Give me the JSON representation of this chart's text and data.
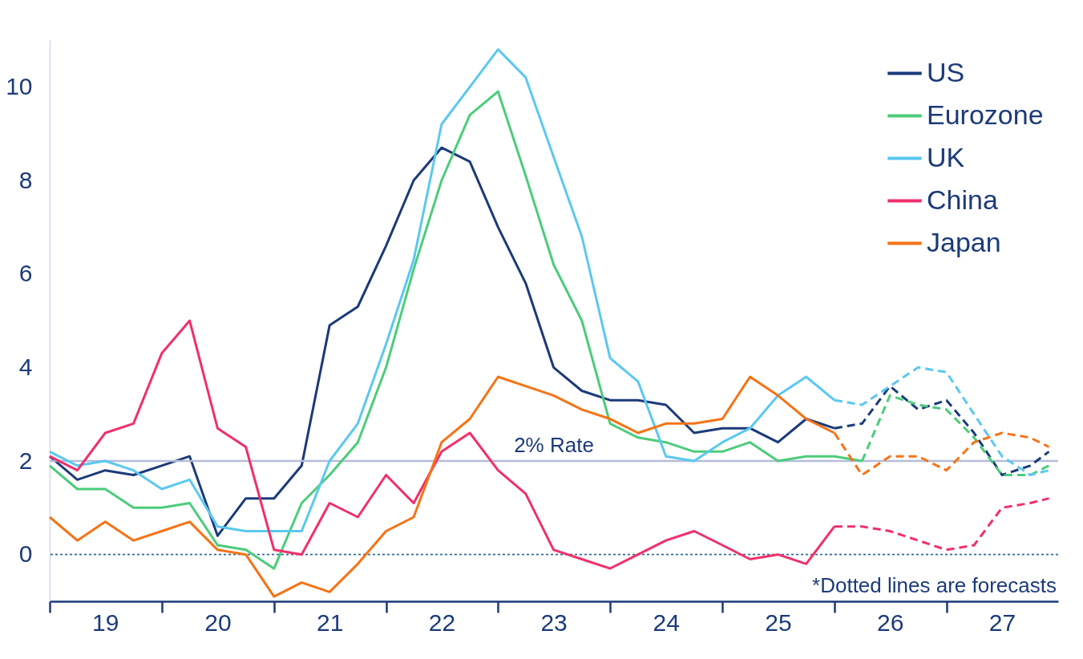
{
  "chart_data": {
    "type": "line",
    "series": [
      {
        "name": "US",
        "color": "#1b3a7a",
        "x": [
          "2019-01",
          "2019-04",
          "2019-07",
          "2019-10",
          "2020-01",
          "2020-04",
          "2020-07",
          "2020-10",
          "2021-01",
          "2021-04",
          "2021-07",
          "2021-10",
          "2022-01",
          "2022-04",
          "2022-07",
          "2022-10",
          "2023-01",
          "2023-04",
          "2023-07",
          "2023-10",
          "2024-01",
          "2024-04",
          "2024-07",
          "2024-10",
          "2025-01",
          "2025-04",
          "2025-07",
          "2025-10",
          "2026-01"
        ],
        "values": [
          2.1,
          1.6,
          1.8,
          1.7,
          1.9,
          2.1,
          0.4,
          1.2,
          1.2,
          1.9,
          4.9,
          5.3,
          6.6,
          8.0,
          8.7,
          8.4,
          7.0,
          5.8,
          4.0,
          3.5,
          3.3,
          3.3,
          3.2,
          2.6,
          2.7,
          2.7,
          2.4,
          2.9,
          2.7
        ]
      },
      {
        "name": "Eurozone",
        "color": "#4ccc7a",
        "x": [
          "2019-01",
          "2019-04",
          "2019-07",
          "2019-10",
          "2020-01",
          "2020-04",
          "2020-07",
          "2020-10",
          "2021-01",
          "2021-04",
          "2021-07",
          "2021-10",
          "2022-01",
          "2022-04",
          "2022-07",
          "2022-10",
          "2023-01",
          "2023-04",
          "2023-07",
          "2023-10",
          "2024-01",
          "2024-04",
          "2024-07",
          "2024-10",
          "2025-01",
          "2025-04",
          "2025-07",
          "2025-10",
          "2026-01",
          "2026-04"
        ],
        "values": [
          1.9,
          1.4,
          1.4,
          1.0,
          1.0,
          1.1,
          0.2,
          0.1,
          -0.3,
          1.1,
          1.7,
          2.4,
          4.0,
          6.1,
          8.0,
          9.4,
          9.9,
          8.1,
          6.2,
          5.0,
          2.8,
          2.5,
          2.4,
          2.2,
          2.2,
          2.4,
          2.0,
          2.1,
          2.1,
          2.0
        ]
      },
      {
        "name": "UK",
        "color": "#5bc8f0",
        "x": [
          "2019-01",
          "2019-04",
          "2019-07",
          "2019-10",
          "2020-01",
          "2020-04",
          "2020-07",
          "2020-10",
          "2021-01",
          "2021-04",
          "2021-07",
          "2021-10",
          "2022-01",
          "2022-04",
          "2022-07",
          "2022-10",
          "2023-01",
          "2023-04",
          "2023-07",
          "2023-10",
          "2024-01",
          "2024-04",
          "2024-07",
          "2024-10",
          "2025-01",
          "2025-04",
          "2025-07",
          "2025-10",
          "2026-01"
        ],
        "values": [
          2.2,
          1.9,
          2.0,
          1.8,
          1.4,
          1.6,
          0.6,
          0.5,
          0.5,
          0.5,
          2.0,
          2.8,
          4.5,
          6.3,
          9.2,
          10.0,
          10.8,
          10.2,
          8.5,
          6.8,
          4.2,
          3.7,
          2.1,
          2.0,
          2.4,
          2.7,
          3.4,
          3.8,
          3.3
        ]
      },
      {
        "name": "China",
        "color": "#f0306a",
        "x": [
          "2019-01",
          "2019-04",
          "2019-07",
          "2019-10",
          "2020-01",
          "2020-04",
          "2020-07",
          "2020-10",
          "2021-01",
          "2021-04",
          "2021-07",
          "2021-10",
          "2022-01",
          "2022-04",
          "2022-07",
          "2022-10",
          "2023-01",
          "2023-04",
          "2023-07",
          "2023-10",
          "2024-01",
          "2024-04",
          "2024-07",
          "2024-10",
          "2025-01",
          "2025-04",
          "2025-07",
          "2025-10",
          "2026-01"
        ],
        "values": [
          2.1,
          1.8,
          2.6,
          2.8,
          4.3,
          5.0,
          2.7,
          2.3,
          0.1,
          0.0,
          1.1,
          0.8,
          1.7,
          1.1,
          2.2,
          2.6,
          1.8,
          1.3,
          0.1,
          -0.1,
          -0.3,
          0.0,
          0.3,
          0.5,
          0.2,
          -0.1,
          0.0,
          -0.2,
          0.6
        ]
      },
      {
        "name": "Japan",
        "color": "#f57315",
        "x": [
          "2019-01",
          "2019-04",
          "2019-07",
          "2019-10",
          "2020-01",
          "2020-04",
          "2020-07",
          "2020-10",
          "2021-01",
          "2021-04",
          "2021-07",
          "2021-10",
          "2022-01",
          "2022-04",
          "2022-07",
          "2022-10",
          "2023-01",
          "2023-04",
          "2023-07",
          "2023-10",
          "2024-01",
          "2024-04",
          "2024-07",
          "2024-10",
          "2025-01",
          "2025-04",
          "2025-07",
          "2025-10",
          "2026-01"
        ],
        "values": [
          0.8,
          0.3,
          0.7,
          0.3,
          0.5,
          0.7,
          0.1,
          0.0,
          -0.9,
          -0.6,
          -0.8,
          -0.2,
          0.5,
          0.8,
          2.4,
          2.9,
          3.8,
          3.6,
          3.4,
          3.1,
          2.9,
          2.6,
          2.8,
          2.8,
          2.9,
          3.8,
          3.4,
          2.9,
          2.6
        ]
      },
      {
        "color": "#1b3a7a",
        "line_style": "dashed",
        "x": [
          "2026-01",
          "2026-04",
          "2026-07",
          "2026-10",
          "2027-01",
          "2027-04",
          "2027-07",
          "2027-10",
          "2027-12"
        ],
        "values": [
          2.7,
          2.8,
          3.6,
          3.1,
          3.3,
          2.6,
          1.7,
          1.9,
          2.2
        ]
      },
      {
        "color": "#4ccc7a",
        "line_style": "dashed",
        "x": [
          "2026-04",
          "2026-07",
          "2026-10",
          "2027-01",
          "2027-04",
          "2027-07",
          "2027-10",
          "2027-12"
        ],
        "values": [
          2.0,
          3.4,
          3.2,
          3.1,
          2.5,
          1.7,
          1.7,
          1.9
        ]
      },
      {
        "color": "#5bc8f0",
        "line_style": "dashed",
        "x": [
          "2026-01",
          "2026-04",
          "2026-07",
          "2026-10",
          "2027-01",
          "2027-04",
          "2027-07",
          "2027-10",
          "2027-12"
        ],
        "values": [
          3.3,
          3.2,
          3.6,
          4.0,
          3.9,
          3.0,
          2.1,
          1.7,
          1.8
        ]
      },
      {
        "color": "#f0306a",
        "line_style": "dashed",
        "x": [
          "2026-01",
          "2026-04",
          "2026-07",
          "2026-10",
          "2027-01",
          "2027-04",
          "2027-07",
          "2027-10",
          "2027-12"
        ],
        "values": [
          0.6,
          0.6,
          0.5,
          0.3,
          0.1,
          0.2,
          1.0,
          1.1,
          1.2
        ]
      },
      {
        "color": "#f57315",
        "line_style": "dashed",
        "x": [
          "2026-01",
          "2026-04",
          "2026-07",
          "2026-10",
          "2027-01",
          "2027-04",
          "2027-07",
          "2027-10",
          "2027-12"
        ],
        "values": [
          2.6,
          1.7,
          2.1,
          2.1,
          1.8,
          2.4,
          2.6,
          2.5,
          2.3
        ]
      }
    ],
    "xlim": [
      "2019-01",
      "2027-12-31"
    ],
    "xticks": [
      {
        "value": "2019-01",
        "label": null
      },
      {
        "value": "2019-07",
        "label": "19"
      },
      {
        "value": "2020-01",
        "label": null
      },
      {
        "value": "2020-07",
        "label": "20"
      },
      {
        "value": "2021-01",
        "label": null
      },
      {
        "value": "2021-07",
        "label": "21"
      },
      {
        "value": "2022-01",
        "label": null
      },
      {
        "value": "2022-07",
        "label": "22"
      },
      {
        "value": "2023-01",
        "label": null
      },
      {
        "value": "2023-07",
        "label": "23"
      },
      {
        "value": "2024-01",
        "label": null
      },
      {
        "value": "2024-07",
        "label": "24"
      },
      {
        "value": "2025-01",
        "label": null
      },
      {
        "value": "2025-07",
        "label": "25"
      },
      {
        "value": "2026-01",
        "label": null
      },
      {
        "value": "2026-07",
        "label": "26"
      },
      {
        "value": "2027-01",
        "label": null
      },
      {
        "value": "2027-07",
        "label": "27"
      }
    ],
    "ylim": [
      -1,
      11
    ],
    "yticks": [
      0,
      2,
      4,
      6,
      8,
      10
    ],
    "ref_lines": [
      {
        "axis": "y",
        "value": 2,
        "label": "2% Rate",
        "color": "#b4bcd8"
      },
      {
        "axis": "y",
        "value": 0,
        "color": "#2e6a9a",
        "line_style": "dotted"
      }
    ],
    "annotations": [
      "*Dotted lines are forecasts"
    ],
    "line_style": "solid",
    "legend": "top right"
  }
}
